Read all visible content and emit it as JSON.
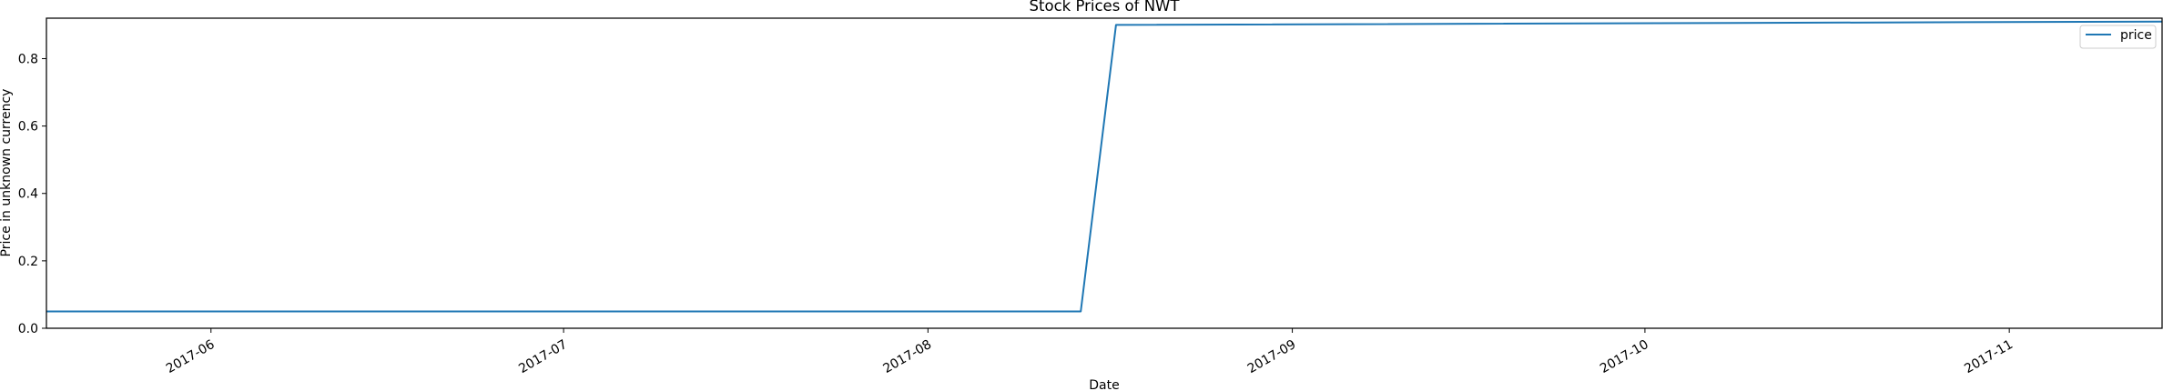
{
  "chart_data": {
    "type": "line",
    "title": "Stock Prices of NWT",
    "xlabel": "Date",
    "ylabel": "Price in unknown currency",
    "xlim": [
      "2017-05-18",
      "2017-11-14"
    ],
    "ylim": [
      0.0,
      0.92
    ],
    "x_ticks": [
      "2017-06",
      "2017-07",
      "2017-08",
      "2017-09",
      "2017-10",
      "2017-11"
    ],
    "y_ticks": [
      "0.0",
      "0.2",
      "0.4",
      "0.6",
      "0.8"
    ],
    "legend": {
      "position": "top-right",
      "entries": [
        "price"
      ]
    },
    "grid": false,
    "series": [
      {
        "name": "price",
        "color": "#1f77b4",
        "x": [
          "2017-05-18",
          "2017-08-14",
          "2017-08-17",
          "2017-11-14"
        ],
        "y": [
          0.05,
          0.05,
          0.9,
          0.91
        ]
      }
    ]
  }
}
